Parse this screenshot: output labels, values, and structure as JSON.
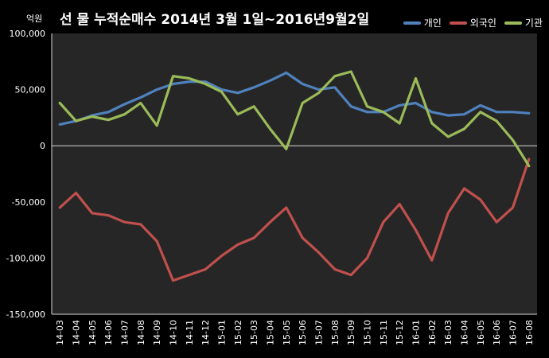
{
  "chart_data": {
    "type": "line",
    "title": "선 물 누적순매수 2014년 3월 1일~2016년9월2일",
    "ylabel": "억원",
    "xlabel": "",
    "ylim": [
      -150000,
      100000
    ],
    "yticks": [
      "100,000",
      "50,000",
      "0",
      "-50,000",
      "-100,000",
      "-150,000"
    ],
    "ytick_values": [
      100000,
      50000,
      0,
      -50000,
      -100000,
      -150000
    ],
    "categories": [
      "14-03",
      "14-04",
      "14-05",
      "14-06",
      "14-07",
      "14-08",
      "14-09",
      "14-10",
      "14-11",
      "14-12",
      "15-01",
      "15-02",
      "15-03",
      "15-04",
      "15-05",
      "15-06",
      "15-07",
      "15-08",
      "15-09",
      "15-10",
      "15-11",
      "15-12",
      "16-01",
      "16-02",
      "16-03",
      "16-04",
      "16-05",
      "16-06",
      "16-07",
      "16-08"
    ],
    "legend_position": "top-right",
    "grid": true,
    "series": [
      {
        "name": "개인",
        "color": "#4f81bd",
        "values": [
          19000,
          22000,
          27000,
          30000,
          37000,
          43000,
          50000,
          55000,
          57000,
          57000,
          50000,
          47000,
          52000,
          58000,
          65000,
          55000,
          50000,
          52000,
          35000,
          30000,
          30000,
          36000,
          38000,
          30000,
          27000,
          28000,
          36000,
          30000,
          30000,
          29000
        ]
      },
      {
        "name": "외국인",
        "color": "#c0504d",
        "values": [
          -55000,
          -42000,
          -60000,
          -62000,
          -68000,
          -70000,
          -85000,
          -120000,
          -115000,
          -110000,
          -98000,
          -88000,
          -82000,
          -68000,
          -55000,
          -82000,
          -95000,
          -110000,
          -115000,
          -100000,
          -68000,
          -52000,
          -75000,
          -102000,
          -60000,
          -38000,
          -48000,
          -68000,
          -55000,
          -12000
        ]
      },
      {
        "name": "기관",
        "color": "#9bbb59",
        "values": [
          38000,
          22000,
          26000,
          23000,
          28000,
          38000,
          18000,
          62000,
          60000,
          55000,
          48000,
          28000,
          35000,
          15000,
          -3000,
          38000,
          47000,
          62000,
          66000,
          35000,
          30000,
          20000,
          60000,
          20000,
          8000,
          15000,
          30000,
          22000,
          5000,
          -18000
        ]
      }
    ]
  }
}
